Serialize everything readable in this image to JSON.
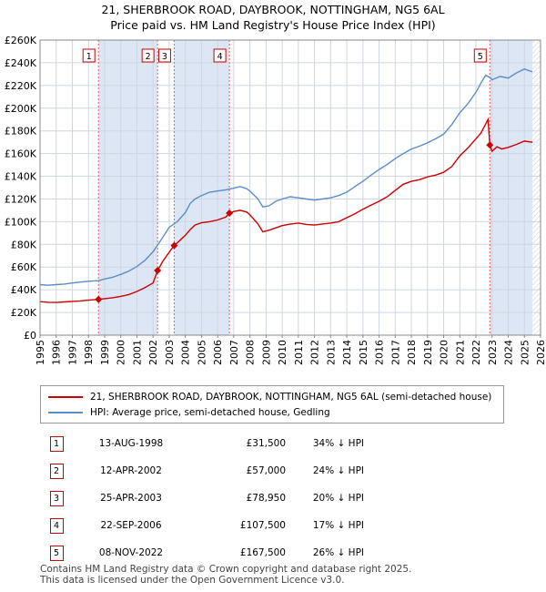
{
  "title": "21, SHERBROOK ROAD, DAYBROOK, NOTTINGHAM, NG5 6AL",
  "subtitle": "Price paid vs. HM Land Registry's House Price Index (HPI)",
  "chart_data": {
    "type": "line",
    "xlim": [
      1995,
      2026
    ],
    "ylim": [
      0,
      260000
    ],
    "y_ticks": [
      0,
      20000,
      40000,
      60000,
      80000,
      100000,
      120000,
      140000,
      160000,
      180000,
      200000,
      220000,
      240000,
      260000
    ],
    "y_tick_labels": [
      "£0",
      "£20K",
      "£40K",
      "£60K",
      "£80K",
      "£100K",
      "£120K",
      "£140K",
      "£160K",
      "£180K",
      "£200K",
      "£220K",
      "£240K",
      "£260K"
    ],
    "x_ticks": [
      1995,
      1996,
      1997,
      1998,
      1999,
      2000,
      2001,
      2002,
      2003,
      2004,
      2005,
      2006,
      2007,
      2008,
      2009,
      2010,
      2011,
      2012,
      2013,
      2014,
      2015,
      2016,
      2017,
      2018,
      2019,
      2020,
      2021,
      2022,
      2023,
      2024,
      2025,
      2026
    ],
    "x_tick_labels": [
      "1995",
      "1996",
      "1997",
      "1998",
      "1999",
      "2000",
      "2001",
      "2002",
      "2003",
      "2004",
      "2005",
      "2006",
      "2007",
      "2008",
      "2009",
      "2010",
      "2011",
      "2012",
      "2013",
      "2014",
      "2015",
      "2016",
      "2017",
      "2018",
      "2019",
      "2020",
      "2021",
      "2022",
      "2023",
      "2024",
      "2025",
      "2026"
    ],
    "shaded_periods": [
      [
        1998.62,
        2002.28
      ],
      [
        2003.31,
        2006.73
      ],
      [
        2022.86,
        2025.5
      ]
    ],
    "series": [
      {
        "name": "21, SHERBROOK ROAD, DAYBROOK, NOTTINGHAM, NG5 6AL (semi-detached house)",
        "color": "#cc0000",
        "x": [
          1995,
          1995.5,
          1996,
          1996.5,
          1997,
          1997.5,
          1998,
          1998.62,
          1999,
          1999.5,
          2000,
          2000.5,
          2001,
          2001.5,
          2002,
          2002.28,
          2002.6,
          2003,
          2003.31,
          2003.7,
          2004,
          2004.3,
          2004.6,
          2005,
          2005.5,
          2006,
          2006.5,
          2006.73,
          2007,
          2007.4,
          2007.8,
          2008,
          2008.5,
          2008.8,
          2009.2,
          2009.6,
          2010,
          2010.5,
          2011,
          2011.5,
          2012,
          2012.5,
          2013,
          2013.5,
          2014,
          2014.5,
          2015,
          2015.5,
          2016,
          2016.5,
          2017,
          2017.5,
          2018,
          2018.5,
          2019,
          2019.5,
          2020,
          2020.5,
          2021,
          2021.5,
          2022,
          2022.3,
          2022.6,
          2022.75,
          2022.86,
          2023,
          2023.3,
          2023.6,
          2024,
          2024.5,
          2025,
          2025.5
        ],
        "y": [
          29500,
          29000,
          28800,
          29300,
          29800,
          30200,
          30800,
          31500,
          32200,
          33000,
          34200,
          35800,
          38500,
          42000,
          46000,
          57000,
          65000,
          73000,
          78950,
          84000,
          88000,
          93000,
          97000,
          99000,
          100000,
          101500,
          104000,
          107500,
          109000,
          110000,
          108500,
          106000,
          98000,
          91000,
          92500,
          94500,
          96500,
          97800,
          98800,
          97600,
          97000,
          98000,
          98800,
          100000,
          103500,
          107000,
          111000,
          114500,
          118000,
          122000,
          127500,
          133000,
          135500,
          137000,
          139500,
          141000,
          143500,
          148500,
          158000,
          165000,
          173000,
          178000,
          186000,
          190000,
          167500,
          162000,
          166000,
          164000,
          165500,
          168000,
          171000,
          170000
        ]
      },
      {
        "name": "HPI: Average price, semi-detached house, Gedling",
        "color": "#5b8dc9",
        "x": [
          1995,
          1995.5,
          1996,
          1996.5,
          1997,
          1997.5,
          1998,
          1998.62,
          1999,
          1999.5,
          2000,
          2000.5,
          2001,
          2001.5,
          2002,
          2002.5,
          2003,
          2003.5,
          2004,
          2004.3,
          2004.6,
          2005,
          2005.5,
          2006,
          2006.5,
          2007,
          2007.4,
          2007.8,
          2008,
          2008.5,
          2008.8,
          2009.2,
          2009.6,
          2010,
          2010.5,
          2011,
          2011.5,
          2012,
          2012.5,
          2013,
          2013.5,
          2014,
          2014.5,
          2015,
          2015.5,
          2016,
          2016.5,
          2017,
          2017.5,
          2018,
          2018.5,
          2019,
          2019.5,
          2020,
          2020.5,
          2021,
          2021.5,
          2022,
          2022.3,
          2022.6,
          2022.86,
          2023,
          2023.5,
          2024,
          2024.5,
          2025,
          2025.5
        ],
        "y": [
          44500,
          44000,
          44500,
          45000,
          46000,
          46800,
          47500,
          48000,
          49500,
          51000,
          53500,
          56500,
          60500,
          66000,
          73500,
          84000,
          95000,
          100000,
          108000,
          116000,
          120000,
          123000,
          126000,
          127000,
          128000,
          129500,
          131000,
          129000,
          127000,
          120000,
          113000,
          114000,
          118000,
          120000,
          122000,
          121000,
          120000,
          119000,
          120000,
          121000,
          123000,
          126000,
          131000,
          135500,
          141000,
          146000,
          150500,
          155500,
          160000,
          164000,
          166500,
          169500,
          173000,
          177000,
          185500,
          196000,
          204000,
          214000,
          222000,
          229000,
          227000,
          225000,
          228000,
          226500,
          231000,
          234500,
          232000
        ]
      }
    ],
    "sale_points": [
      {
        "label": "1",
        "x": 1998.62,
        "y": 31500
      },
      {
        "label": "2",
        "x": 2002.28,
        "y": 57000
      },
      {
        "label": "3",
        "x": 2003.31,
        "y": 78950
      },
      {
        "label": "4",
        "x": 2006.73,
        "y": 107500
      },
      {
        "label": "5",
        "x": 2022.86,
        "y": 167500
      }
    ]
  },
  "legend": {
    "items": [
      {
        "label": "21, SHERBROOK ROAD, DAYBROOK, NOTTINGHAM, NG5 6AL (semi-detached house)",
        "color": "#cc0000"
      },
      {
        "label": "HPI: Average price, semi-detached house, Gedling",
        "color": "#5b8dc9"
      }
    ]
  },
  "transactions": [
    {
      "num": "1",
      "date": "13-AUG-1998",
      "price": "£31,500",
      "hpi": "34% ↓ HPI"
    },
    {
      "num": "2",
      "date": "12-APR-2002",
      "price": "£57,000",
      "hpi": "24% ↓ HPI"
    },
    {
      "num": "3",
      "date": "25-APR-2003",
      "price": "£78,950",
      "hpi": "20% ↓ HPI"
    },
    {
      "num": "4",
      "date": "22-SEP-2006",
      "price": "£107,500",
      "hpi": "17% ↓ HPI"
    },
    {
      "num": "5",
      "date": "08-NOV-2022",
      "price": "£167,500",
      "hpi": "26% ↓ HPI"
    }
  ],
  "footer": {
    "line1": "Contains HM Land Registry data © Crown copyright and database right 2025.",
    "line2": "This data is licensed under the Open Government Licence v3.0."
  }
}
